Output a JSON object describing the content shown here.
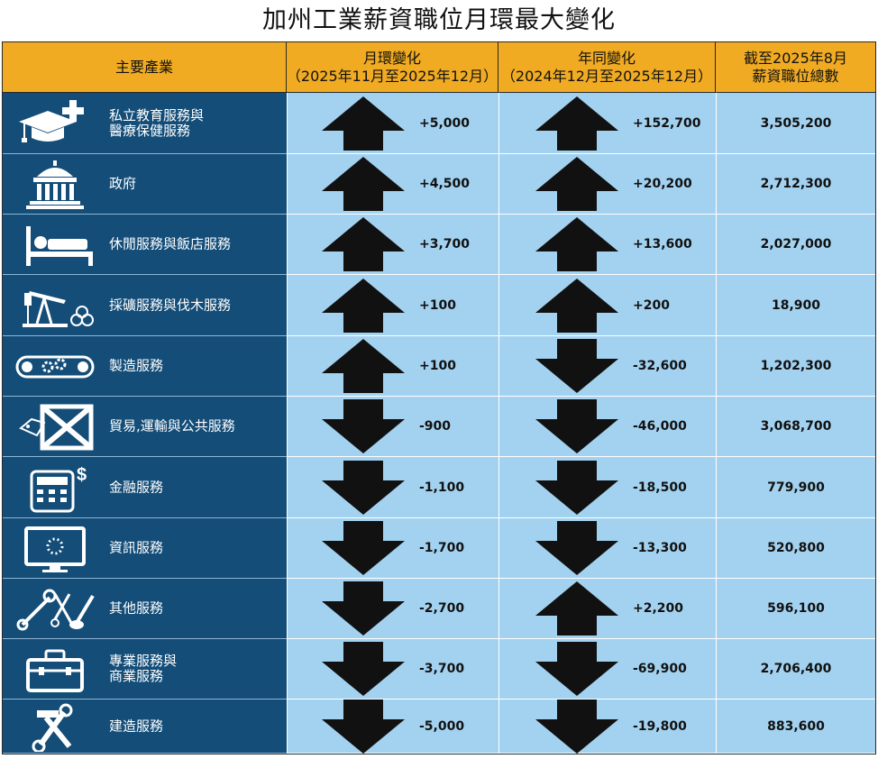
{
  "title": "加州工業薪資職位月環最大變化",
  "header": {
    "industry": "主要產業",
    "mom_line1": "月環變化",
    "mom_line2": "（2025年11月至2025年12月）",
    "yoy_line1": "年同變化",
    "yoy_line2": "（2024年12月至2025年12月）",
    "total_line1": "截至2025年8月",
    "total_line2": "薪資職位總數"
  },
  "colors": {
    "header": "#f0ab23",
    "category": "#134d78",
    "cell": "#a3d2f0",
    "arrow": "#111111"
  },
  "rows": [
    {
      "name": "私立教育服務與\n醫療保健服務",
      "icon": "education-health-icon",
      "mom_dir": "up",
      "mom": "+5,000",
      "yoy_dir": "up",
      "yoy": "+152,700",
      "total": "3,505,200"
    },
    {
      "name": "政府",
      "icon": "government-building-icon",
      "mom_dir": "up",
      "mom": "+4,500",
      "yoy_dir": "up",
      "yoy": "+20,200",
      "total": "2,712,300"
    },
    {
      "name": "休閒服務與飯店服務",
      "icon": "bed-icon",
      "mom_dir": "up",
      "mom": "+3,700",
      "yoy_dir": "up",
      "yoy": "+13,600",
      "total": "2,027,000"
    },
    {
      "name": "採礦服務與伐木服務",
      "icon": "oil-pump-logs-icon",
      "mom_dir": "up",
      "mom": "+100",
      "yoy_dir": "up",
      "yoy": "+200",
      "total": "18,900"
    },
    {
      "name": "製造服務",
      "icon": "conveyor-gears-icon",
      "mom_dir": "up",
      "mom": "+100",
      "yoy_dir": "down",
      "yoy": "-32,600",
      "total": "1,202,300"
    },
    {
      "name": "貿易,運輸與公共服務",
      "icon": "crate-tag-icon",
      "mom_dir": "down",
      "mom": "-900",
      "yoy_dir": "down",
      "yoy": "-46,000",
      "total": "3,068,700"
    },
    {
      "name": "金融服務",
      "icon": "calculator-dollar-icon",
      "mom_dir": "down",
      "mom": "-1,100",
      "yoy_dir": "down",
      "yoy": "-18,500",
      "total": "779,900"
    },
    {
      "name": "資訊服務",
      "icon": "monitor-loading-icon",
      "mom_dir": "down",
      "mom": "-1,700",
      "yoy_dir": "down",
      "yoy": "-13,300",
      "total": "520,800"
    },
    {
      "name": "其他服務",
      "icon": "tools-scissors-icon",
      "mom_dir": "down",
      "mom": "-2,700",
      "yoy_dir": "up",
      "yoy": "+2,200",
      "total": "596,100"
    },
    {
      "name": "專業服務與\n商業服務",
      "icon": "toolbox-icon",
      "mom_dir": "down",
      "mom": "-3,700",
      "yoy_dir": "down",
      "yoy": "-69,900",
      "total": "2,706,400"
    },
    {
      "name": "建造服務",
      "icon": "hammer-wrench-icon",
      "mom_dir": "down",
      "mom": "-5,000",
      "yoy_dir": "down",
      "yoy": "-19,800",
      "total": "883,600"
    }
  ]
}
